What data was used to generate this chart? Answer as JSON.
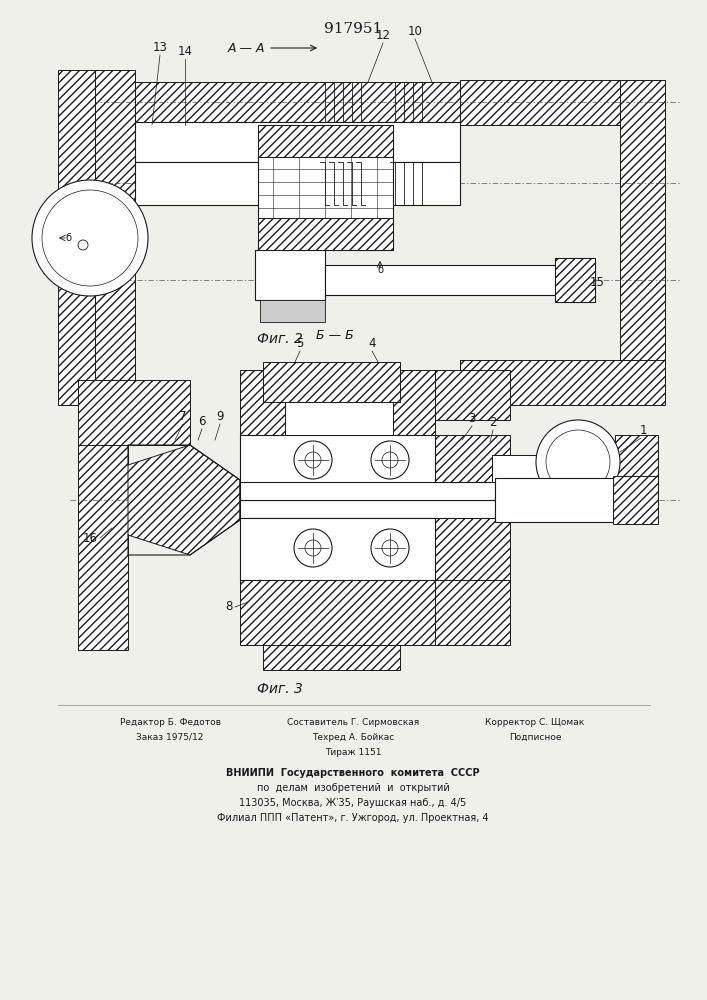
{
  "title": "917951",
  "fig2_caption": "Фиг. 2",
  "fig3_caption": "Фиг. 3",
  "footer_left_line1": "Редактор Б. Федотов",
  "footer_left_line2": "Заказ 1975/12",
  "footer_center_line1": "Составитель Г. Сирмовская",
  "footer_center_line2": "Техред А. Бойкас",
  "footer_center_line3": "Тираж 1151",
  "footer_right_line1": "Корректор С. Щомак",
  "footer_right_line2": "Подписное",
  "footer_vniiipi_1": "ВНИИПИ  Государственного  комитета  СССР",
  "footer_vniiipi_2": "по  делам  изобретений  и  открытий",
  "footer_vniiipi_3": "113035, Москва, Ж‵35, Раушская наб., д. 4/5",
  "footer_vniiipi_4": "Филиал ППП «Патент», г. Ужгород, ул. Проектная, 4",
  "bg_color": "#f0f0eb",
  "line_color": "#1a1a1a"
}
